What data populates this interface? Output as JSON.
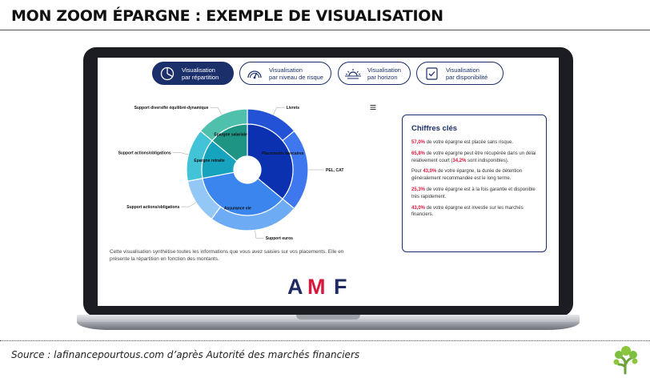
{
  "title": "MON ZOOM ÉPARGNE : EXEMPLE DE VISUALISATION",
  "source": "Source : lafinancepourtous.com d’après Autorité des marchés financiers",
  "tabs": [
    {
      "line1": "Visualisation",
      "line2": "par répartition",
      "icon": "pie-chart-icon",
      "active": true
    },
    {
      "line1": "Visualisation",
      "line2": "par niveau de risque",
      "icon": "gauge-icon",
      "active": false
    },
    {
      "line1": "Visualisation",
      "line2": "par horizon",
      "icon": "sunrise-icon",
      "active": false
    },
    {
      "line1": "Visualisation",
      "line2": "par disponibilité",
      "icon": "check-box-icon",
      "active": false
    }
  ],
  "chart_data": {
    "type": "pie",
    "title": "",
    "inner": [
      {
        "label": "Placements bancaires",
        "value": 36,
        "color": "#0b31b0"
      },
      {
        "label": "Assurance vie",
        "value": 36,
        "color": "#3a86ee"
      },
      {
        "label": "Epargne retraite",
        "value": 14,
        "color": "#16a3bd"
      },
      {
        "label": "Epargne salariale",
        "value": 14,
        "color": "#1e9484"
      }
    ],
    "outer": [
      {
        "label": "Livrets",
        "value": 14,
        "color": "#2452d6"
      },
      {
        "label": "PEL, CAT",
        "value": 22,
        "color": "#3f78ee"
      },
      {
        "label": "Support euros",
        "value": 24,
        "color": "#6eabf5"
      },
      {
        "label": "Support actions/obligations",
        "value": 12,
        "color": "#93c7f6"
      },
      {
        "label": "Support actions/obligations",
        "value": 14,
        "color": "#43c3d8"
      },
      {
        "label": "Support diversifié équilibré-dynamique",
        "value": 14,
        "color": "#4fc0ac"
      }
    ]
  },
  "key_figures": {
    "title": "Chiffres clés",
    "items": [
      {
        "value": "57,0%",
        "text": " de votre épargne est placée sans risque."
      },
      {
        "value": "65,8%",
        "text": " de votre épargne peut être récupérée dans un délai relativement court (",
        "value2": "34,2%",
        "text2": " sont indisponibles)."
      },
      {
        "prefix": "Pour ",
        "value": "43,0%",
        "text": " de votre épargne, la durée de détention généralement recommandée est le long terme."
      },
      {
        "value": "25,3%",
        "text": " de votre épargne est à la fois garantie et disponible très rapidement."
      },
      {
        "value": "43,0%",
        "text": " de votre épargne est investie sur les marchés financiers."
      }
    ]
  },
  "description": "Cette visualisation synthétise toutes les informations que vous avez saisies sur vos placements. Elle en présente la répartition en fonction des montants.",
  "logo": {
    "text": "AMF",
    "name": "amf-logo",
    "colors": {
      "a": "#1f2a63",
      "m": "#d8183c",
      "f": "#1f2a63"
    }
  },
  "colors": {
    "navy": "#1b2f6b",
    "highlight": "#d8183c"
  }
}
